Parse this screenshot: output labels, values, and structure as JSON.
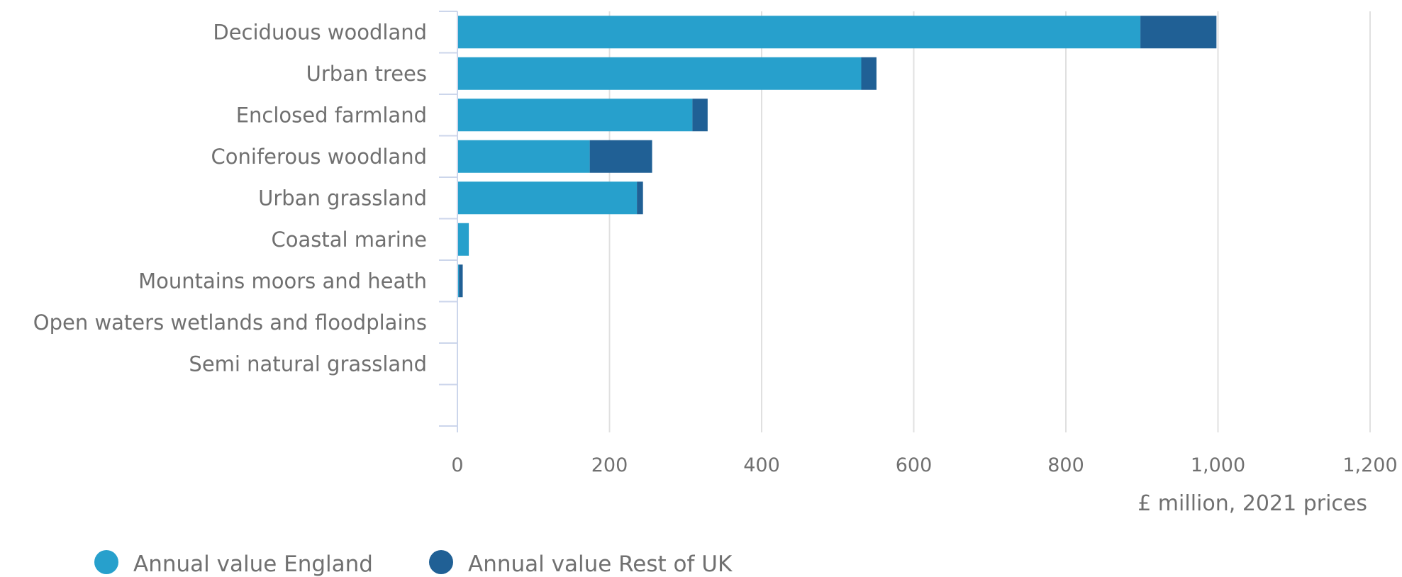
{
  "chart_data": {
    "type": "bar",
    "orientation": "horizontal",
    "stacked": true,
    "categories": [
      "Deciduous woodland",
      "Urban trees",
      "Enclosed farmland",
      "Coniferous woodland",
      "Urban grassland",
      "Coastal marine",
      "Mountains moors and heath",
      "Open waters wetlands and floodplains",
      "Semi natural grassland"
    ],
    "series": [
      {
        "name": "Annual value England",
        "color": "#27a0cc",
        "values": [
          898,
          531,
          309,
          174,
          236,
          15,
          2,
          0,
          0
        ]
      },
      {
        "name": "Annual value Rest of UK",
        "color": "#206095",
        "values": [
          100,
          20,
          20,
          82,
          8,
          0,
          5,
          0,
          0
        ]
      }
    ],
    "xlabel": "£ million, 2021 prices",
    "ylabel": "",
    "xlim": [
      0,
      1200
    ],
    "xticks": [
      0,
      200,
      400,
      600,
      800,
      1000,
      1200
    ],
    "xtick_labels": [
      "0",
      "200",
      "400",
      "600",
      "800",
      "1,000",
      "1,200"
    ],
    "grid": true,
    "legend_position": "bottom-left"
  }
}
